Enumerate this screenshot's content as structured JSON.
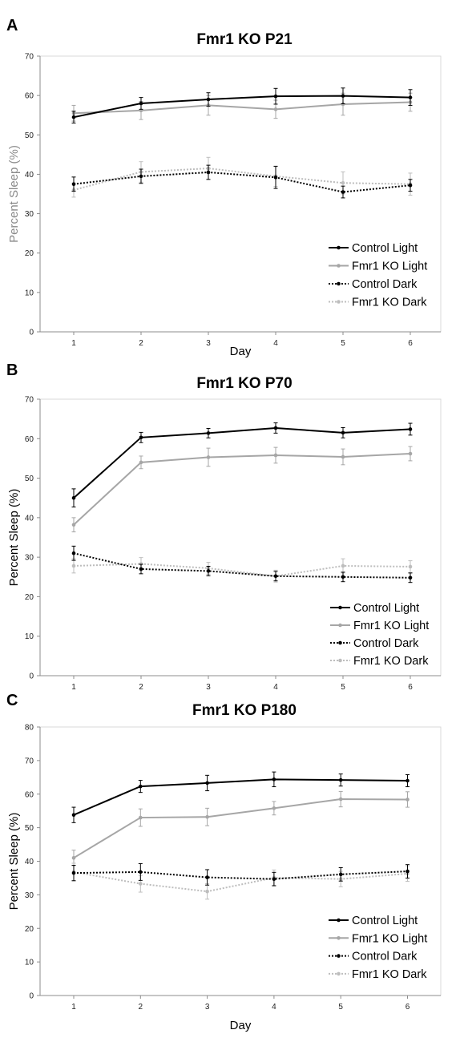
{
  "chart_data": [
    {
      "type": "line",
      "panel_label": "A",
      "title": "Fmr1 KO P21",
      "xlabel": "Day",
      "ylabel": "Percent Sleep (%)",
      "ylabel_color": "#8a8a8a",
      "ylim": [
        0,
        70
      ],
      "yticks": [
        0,
        10,
        20,
        30,
        40,
        50,
        60,
        70
      ],
      "categories": [
        "1",
        "2",
        "3",
        "4",
        "5",
        "6"
      ],
      "legend": "bottom-right",
      "grid": false,
      "series": [
        {
          "name": "Control Light",
          "color": "#000000",
          "style": "solid",
          "values": [
            54.5,
            58,
            59,
            59.8,
            59.9,
            59.5
          ],
          "errors": [
            1.5,
            1.5,
            1.7,
            2,
            2,
            2
          ]
        },
        {
          "name": "Fmr1 KO Light",
          "color": "#a6a6a6",
          "style": "solid",
          "values": [
            55.5,
            56.2,
            57.5,
            56.5,
            57.8,
            58.3
          ],
          "errors": [
            2,
            2.3,
            2.5,
            2.3,
            2.8,
            2.3
          ]
        },
        {
          "name": "Control Dark",
          "color": "#000000",
          "style": "dotted",
          "values": [
            37.5,
            39.5,
            40.5,
            39.2,
            35.5,
            37.2
          ],
          "errors": [
            1.8,
            1.8,
            1.8,
            2.8,
            1.5,
            1.5
          ]
        },
        {
          "name": "Fmr1 KO Dark",
          "color": "#bdbdbd",
          "style": "dotted",
          "values": [
            36,
            40.6,
            41.5,
            39.5,
            37.8,
            37.5
          ],
          "errors": [
            1.8,
            2.6,
            2.8,
            2.6,
            2.8,
            2.8
          ]
        }
      ]
    },
    {
      "type": "line",
      "panel_label": "B",
      "title": "Fmr1 KO P70",
      "xlabel": "",
      "ylabel": "Percent Sleep (%)",
      "ylabel_color": "#000000",
      "ylim": [
        0,
        70
      ],
      "yticks": [
        0,
        10,
        20,
        30,
        40,
        50,
        60,
        70
      ],
      "categories": [
        "1",
        "2",
        "3",
        "4",
        "5",
        "6"
      ],
      "legend": "bottom-right",
      "grid": false,
      "series": [
        {
          "name": "Control Light",
          "color": "#000000",
          "style": "solid",
          "values": [
            45,
            60.3,
            61.4,
            62.7,
            61.5,
            62.4
          ],
          "errors": [
            2.3,
            1.3,
            1.2,
            1.3,
            1.3,
            1.5
          ]
        },
        {
          "name": "Fmr1 KO Light",
          "color": "#a6a6a6",
          "style": "solid",
          "values": [
            38.2,
            54,
            55.3,
            55.8,
            55.4,
            56.2
          ],
          "errors": [
            1.8,
            1.6,
            2.3,
            2,
            2,
            1.8
          ]
        },
        {
          "name": "Control Dark",
          "color": "#000000",
          "style": "dotted",
          "values": [
            31,
            27,
            26.5,
            25.2,
            25,
            24.8
          ],
          "errors": [
            1.8,
            1.2,
            1.2,
            1.2,
            1.2,
            1.2
          ]
        },
        {
          "name": "Fmr1 KO Dark",
          "color": "#bdbdbd",
          "style": "dotted",
          "values": [
            27.8,
            28.3,
            27.2,
            25.2,
            27.8,
            27.6
          ],
          "errors": [
            1.8,
            1.6,
            1.5,
            1.5,
            1.8,
            1.5
          ]
        }
      ]
    },
    {
      "type": "line",
      "panel_label": "C",
      "title": "Fmr1 KO P180",
      "xlabel": "Day",
      "ylabel": "Percent Sleep (%)",
      "ylabel_color": "#000000",
      "ylim": [
        0,
        80
      ],
      "yticks": [
        0,
        10,
        20,
        30,
        40,
        50,
        60,
        70,
        80
      ],
      "categories": [
        "1",
        "2",
        "3",
        "4",
        "5",
        "6"
      ],
      "legend": "bottom-right",
      "grid": false,
      "series": [
        {
          "name": "Control Light",
          "color": "#000000",
          "style": "solid",
          "values": [
            53.8,
            62.3,
            63.3,
            64.4,
            64.2,
            64
          ],
          "errors": [
            2.3,
            1.8,
            2.3,
            2.2,
            1.8,
            1.8
          ]
        },
        {
          "name": "Fmr1 KO Light",
          "color": "#a6a6a6",
          "style": "solid",
          "values": [
            41,
            53,
            53.2,
            55.8,
            58.5,
            58.4
          ],
          "errors": [
            2.3,
            2.6,
            2.6,
            2,
            2.3,
            2.3
          ]
        },
        {
          "name": "Control Dark",
          "color": "#000000",
          "style": "dotted",
          "values": [
            36.5,
            36.8,
            35.2,
            34.7,
            36.1,
            37
          ],
          "errors": [
            2.3,
            2.5,
            2.3,
            2,
            2,
            2
          ]
        },
        {
          "name": "Fmr1 KO Dark",
          "color": "#bdbdbd",
          "style": "dotted",
          "values": [
            36.8,
            33.3,
            31,
            35.1,
            34.7,
            36.3
          ],
          "errors": [
            2.6,
            2.5,
            2.3,
            2.3,
            2.3,
            2.3
          ]
        }
      ]
    }
  ]
}
